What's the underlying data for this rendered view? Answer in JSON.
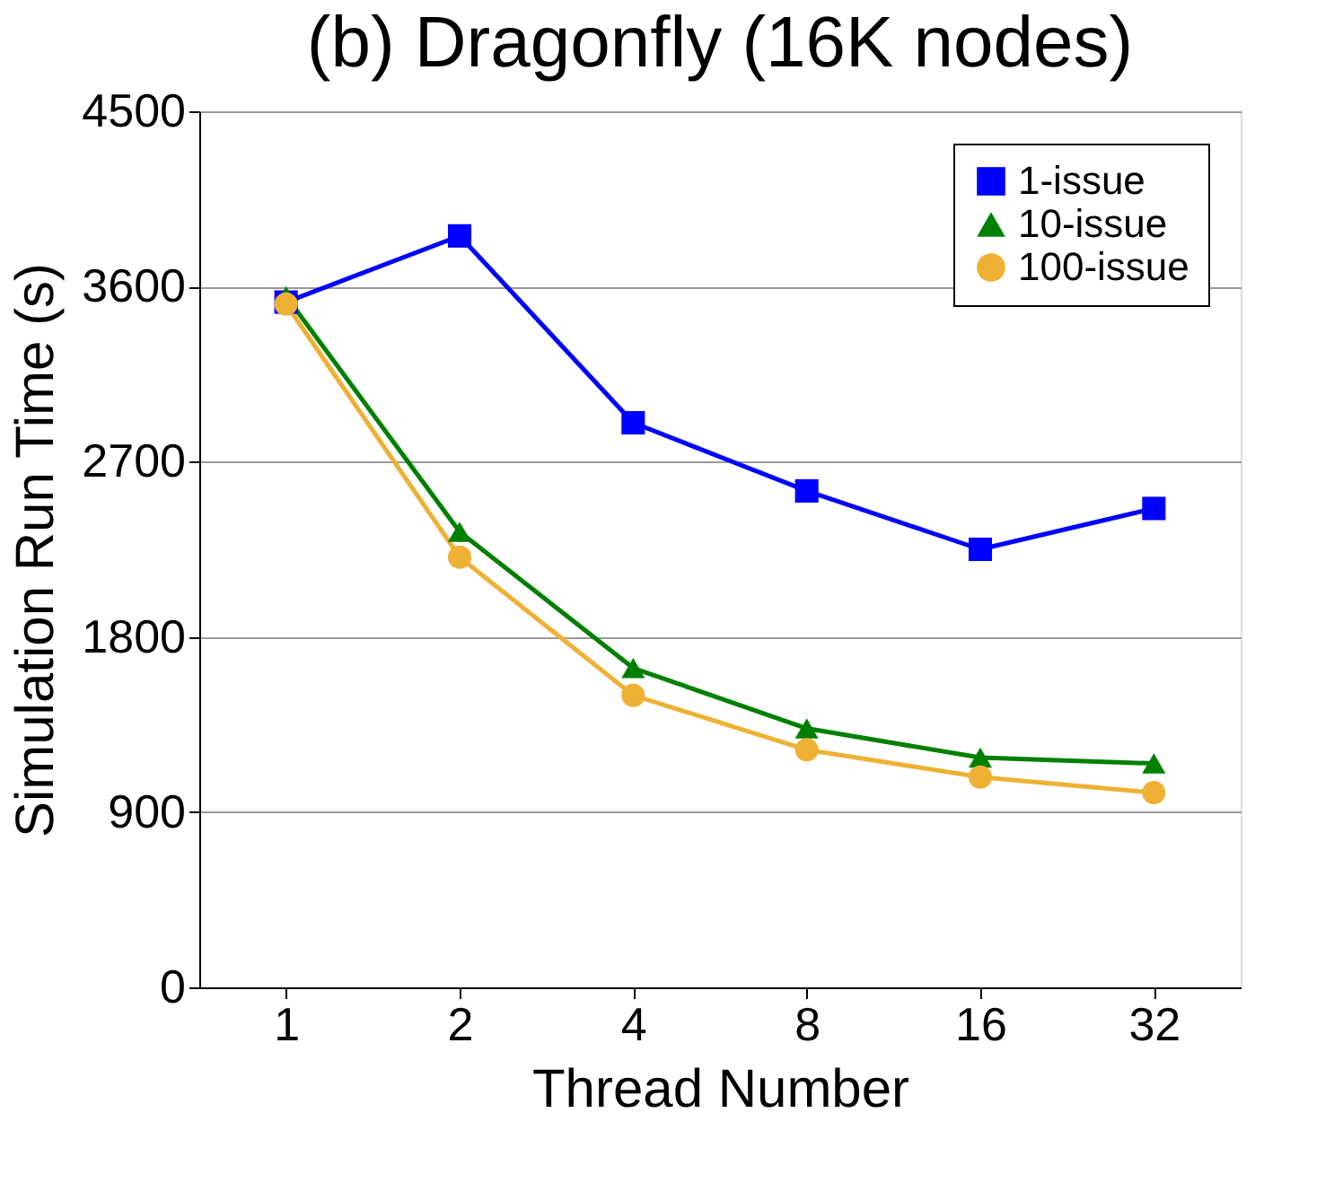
{
  "chart_data": {
    "type": "line",
    "title": "(b) Dragonfly (16K nodes)",
    "xlabel": "Thread Number",
    "ylabel": "Simulation Run Time (s)",
    "categories": [
      "1",
      "2",
      "4",
      "8",
      "16",
      "32"
    ],
    "ylim": [
      0,
      4500
    ],
    "yticks": [
      0,
      900,
      1800,
      2700,
      3600,
      4500
    ],
    "grid": "y",
    "legend": "top right",
    "line_style": "solid",
    "series": [
      {
        "name": "1-issue",
        "color": "#0000ff",
        "marker": "square",
        "values": [
          3520,
          3860,
          2900,
          2550,
          2250,
          2460
        ]
      },
      {
        "name": "10-issue",
        "color": "#008000",
        "marker": "triangle",
        "values": [
          3550,
          2340,
          1640,
          1330,
          1180,
          1150
        ]
      },
      {
        "name": "100-issue",
        "color": "#eeb134",
        "marker": "circle",
        "values": [
          3510,
          2210,
          1500,
          1220,
          1080,
          1000
        ]
      }
    ]
  }
}
